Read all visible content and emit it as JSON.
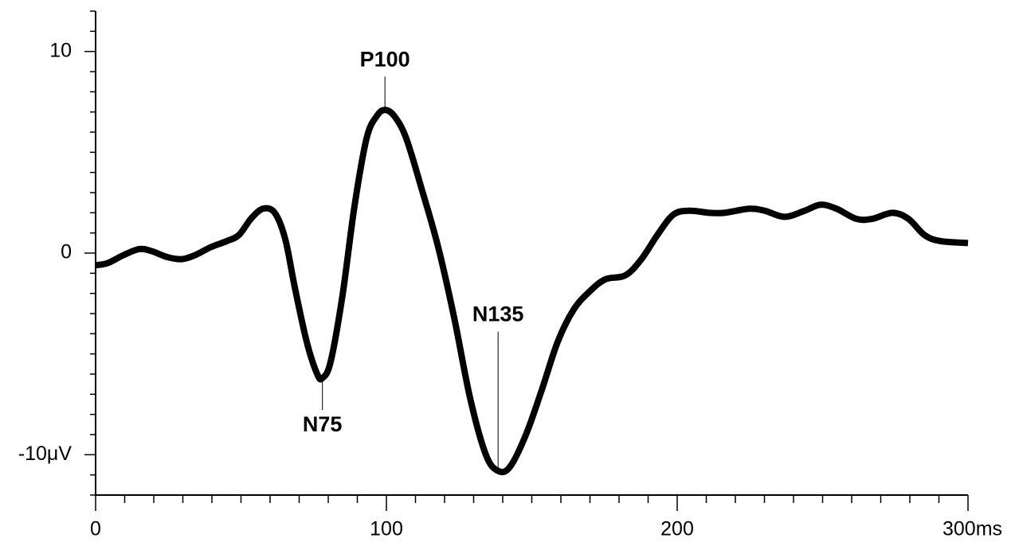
{
  "chart_data": {
    "type": "line",
    "x": [
      0,
      4.1,
      9.6,
      15,
      19.2,
      24.7,
      29.6,
      34.2,
      39.7,
      45.2,
      49.3,
      53.4,
      57.5,
      61.6,
      65.2,
      68.5,
      72.6,
      76.2,
      78,
      80.8,
      84.9,
      89,
      93.2,
      96.7,
      99.5,
      102.7,
      106.8,
      112.3,
      117.8,
      123.3,
      128.8,
      134.2,
      138.4,
      142.5,
      148,
      153.4,
      158.9,
      164.4,
      169.9,
      175.3,
      182.2,
      187.7,
      193.2,
      198.6,
      204.1,
      211,
      216.4,
      224.7,
      230.1,
      237,
      243.8,
      249.3,
      254.8,
      261.6,
      267.1,
      274,
      279.5,
      285,
      290.4,
      300
    ],
    "series": [
      {
        "color": "#000000",
        "values": [
          -0.6,
          -0.5,
          -0.1,
          0.2,
          0.1,
          -0.2,
          -0.3,
          -0.1,
          0.3,
          0.6,
          0.9,
          1.7,
          2.2,
          2.0,
          0.7,
          -1.7,
          -4.4,
          -6.0,
          -6.2,
          -5.4,
          -2.1,
          2.3,
          5.7,
          6.8,
          7.1,
          6.8,
          5.7,
          3.1,
          0.3,
          -3.2,
          -7.2,
          -10,
          -10.8,
          -10.6,
          -9,
          -6.8,
          -4.4,
          -2.8,
          -1.9,
          -1.3,
          -1.1,
          -0.3,
          0.9,
          1.9,
          2.1,
          2.0,
          2.0,
          2.2,
          2.1,
          1.8,
          2.1,
          2.4,
          2.2,
          1.7,
          1.7,
          2.0,
          1.7,
          0.9,
          0.6,
          0.5
        ]
      }
    ],
    "xlim": [
      0,
      300
    ],
    "ylim": [
      -12,
      12
    ],
    "xticks": [
      0,
      100,
      200,
      {
        "value": 300,
        "label": "300ms"
      }
    ],
    "yticks": [
      {
        "value": -10,
        "label": "-10μV"
      },
      0,
      10
    ],
    "xminorticks": [
      10,
      20,
      30,
      40,
      50,
      60,
      70,
      80,
      90,
      110,
      120,
      130,
      140,
      150,
      160,
      170,
      180,
      190,
      210,
      220,
      230,
      240,
      250,
      260,
      270,
      280,
      290
    ],
    "yminorticks": [
      -12,
      -11,
      -9,
      -8,
      -7,
      -6,
      -5,
      -4,
      -3,
      -2,
      -1,
      1,
      2,
      3,
      4,
      5,
      6,
      7,
      8,
      9,
      11,
      12
    ],
    "annotations": [
      {
        "text": "N75",
        "x": 78,
        "y": -6.2,
        "position": "below"
      },
      {
        "text": "P100",
        "x": 99.5,
        "y": 7.1,
        "position": "above"
      },
      {
        "text": "N135",
        "x": 138.4,
        "y": -10.8,
        "position": "above"
      }
    ]
  }
}
